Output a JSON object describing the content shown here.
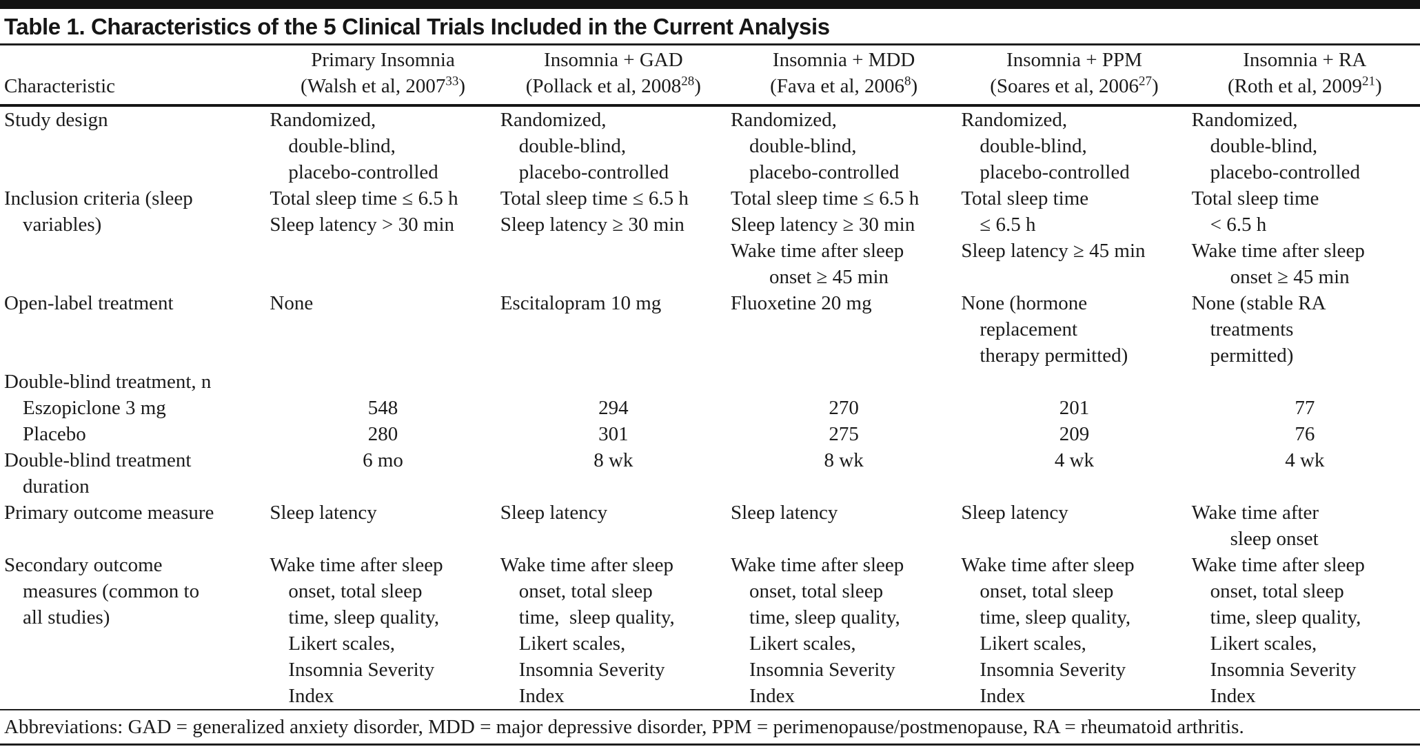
{
  "title": "Table 1. Characteristics of the 5 Clinical Trials Included in the Current Analysis",
  "header": {
    "characteristic": "Characteristic",
    "columns": [
      {
        "name": "Primary Insomnia",
        "ref": "(Walsh et al, 2007",
        "sup": "33",
        "close": ")"
      },
      {
        "name": "Insomnia + GAD",
        "ref": "(Pollack et al, 2008",
        "sup": "28",
        "close": ")"
      },
      {
        "name": "Insomnia + MDD",
        "ref": "(Fava et al, 2006",
        "sup": "8",
        "close": ")"
      },
      {
        "name": "Insomnia + PPM",
        "ref": "(Soares et al, 2006",
        "sup": "27",
        "close": ")"
      },
      {
        "name": "Insomnia + RA",
        "ref": "(Roth et al, 2009",
        "sup": "21",
        "close": ")"
      }
    ]
  },
  "rows": [
    {
      "name": "study-design",
      "label": [
        {
          "t": "Study design",
          "i": 0
        }
      ],
      "cells": [
        {
          "align": "left",
          "lines": [
            {
              "t": "Randomized,",
              "i": 0
            },
            {
              "t": "double-blind,",
              "i": 1
            },
            {
              "t": "placebo-controlled",
              "i": 1
            }
          ]
        },
        {
          "align": "left",
          "lines": [
            {
              "t": "Randomized,",
              "i": 0
            },
            {
              "t": "double-blind,",
              "i": 1
            },
            {
              "t": "placebo-controlled",
              "i": 1
            }
          ]
        },
        {
          "align": "left",
          "lines": [
            {
              "t": "Randomized,",
              "i": 0
            },
            {
              "t": "double-blind,",
              "i": 1
            },
            {
              "t": "placebo-controlled",
              "i": 1
            }
          ]
        },
        {
          "align": "left",
          "lines": [
            {
              "t": "Randomized,",
              "i": 0
            },
            {
              "t": "double-blind,",
              "i": 1
            },
            {
              "t": "placebo-controlled",
              "i": 1
            }
          ]
        },
        {
          "align": "left",
          "lines": [
            {
              "t": "Randomized,",
              "i": 0
            },
            {
              "t": "double-blind,",
              "i": 1
            },
            {
              "t": "placebo-controlled",
              "i": 1
            }
          ]
        }
      ]
    },
    {
      "name": "inclusion-criteria",
      "label": [
        {
          "t": "Inclusion criteria (sleep",
          "i": 0
        },
        {
          "t": "variables)",
          "i": 1
        }
      ],
      "cells": [
        {
          "align": "left",
          "lines": [
            {
              "t": "Total sleep time ≤ 6.5 h",
              "i": 0
            },
            {
              "t": "Sleep latency > 30 min",
              "i": 0
            }
          ]
        },
        {
          "align": "left",
          "lines": [
            {
              "t": "Total sleep time ≤ 6.5 h",
              "i": 0
            },
            {
              "t": "Sleep latency ≥ 30 min",
              "i": 0
            }
          ]
        },
        {
          "align": "left",
          "lines": [
            {
              "t": "Total sleep time ≤ 6.5 h",
              "i": 0
            },
            {
              "t": "Sleep latency ≥ 30 min",
              "i": 0
            },
            {
              "t": "Wake time after sleep",
              "i": 0
            },
            {
              "t": "onset ≥ 45 min",
              "i": 2
            }
          ]
        },
        {
          "align": "left",
          "lines": [
            {
              "t": "Total sleep time",
              "i": 0
            },
            {
              "t": "≤ 6.5 h",
              "i": 1
            },
            {
              "t": "Sleep latency ≥ 45 min",
              "i": 0
            }
          ]
        },
        {
          "align": "left",
          "lines": [
            {
              "t": "Total sleep time",
              "i": 0
            },
            {
              "t": "< 6.5 h",
              "i": 1
            },
            {
              "t": "Wake time after sleep",
              "i": 0
            },
            {
              "t": "onset ≥ 45 min",
              "i": 2
            }
          ]
        }
      ]
    },
    {
      "name": "open-label-treatment",
      "label": [
        {
          "t": "Open-label treatment",
          "i": 0
        }
      ],
      "cells": [
        {
          "align": "left",
          "lines": [
            {
              "t": "None",
              "i": 0
            }
          ]
        },
        {
          "align": "left",
          "lines": [
            {
              "t": "Escitalopram 10 mg",
              "i": 0
            }
          ]
        },
        {
          "align": "left",
          "lines": [
            {
              "t": "Fluoxetine 20 mg",
              "i": 0
            }
          ]
        },
        {
          "align": "left",
          "lines": [
            {
              "t": "None (hormone",
              "i": 0
            },
            {
              "t": "replacement",
              "i": 1
            },
            {
              "t": "therapy permitted)",
              "i": 1
            }
          ]
        },
        {
          "align": "left",
          "lines": [
            {
              "t": "None (stable RA",
              "i": 0
            },
            {
              "t": "treatments",
              "i": 1
            },
            {
              "t": "permitted)",
              "i": 1
            }
          ]
        }
      ]
    },
    {
      "name": "double-blind-treatment-n",
      "label": [
        {
          "t": "Double-blind treatment, n",
          "i": 0
        }
      ],
      "cells": [
        {
          "align": "center",
          "lines": []
        },
        {
          "align": "center",
          "lines": []
        },
        {
          "align": "center",
          "lines": []
        },
        {
          "align": "center",
          "lines": []
        },
        {
          "align": "center",
          "lines": []
        }
      ]
    },
    {
      "name": "eszopiclone-3-mg-n",
      "label": [
        {
          "t": "Eszopiclone 3 mg",
          "i": 1
        }
      ],
      "cells": [
        {
          "align": "center",
          "lines": [
            {
              "t": "548",
              "i": 0
            }
          ]
        },
        {
          "align": "center",
          "lines": [
            {
              "t": "294",
              "i": 0
            }
          ]
        },
        {
          "align": "center",
          "lines": [
            {
              "t": "270",
              "i": 0
            }
          ]
        },
        {
          "align": "center",
          "lines": [
            {
              "t": "201",
              "i": 0
            }
          ]
        },
        {
          "align": "center",
          "lines": [
            {
              "t": "77",
              "i": 0
            }
          ]
        }
      ]
    },
    {
      "name": "placebo-n",
      "label": [
        {
          "t": "Placebo",
          "i": 1
        }
      ],
      "cells": [
        {
          "align": "center",
          "lines": [
            {
              "t": "280",
              "i": 0
            }
          ]
        },
        {
          "align": "center",
          "lines": [
            {
              "t": "301",
              "i": 0
            }
          ]
        },
        {
          "align": "center",
          "lines": [
            {
              "t": "275",
              "i": 0
            }
          ]
        },
        {
          "align": "center",
          "lines": [
            {
              "t": "209",
              "i": 0
            }
          ]
        },
        {
          "align": "center",
          "lines": [
            {
              "t": "76",
              "i": 0
            }
          ]
        }
      ]
    },
    {
      "name": "double-blind-treatment-duration",
      "label": [
        {
          "t": "Double-blind treatment",
          "i": 0
        },
        {
          "t": "duration",
          "i": 1
        }
      ],
      "cells": [
        {
          "align": "center",
          "lines": [
            {
              "t": "6 mo",
              "i": 0
            }
          ]
        },
        {
          "align": "center",
          "lines": [
            {
              "t": "8 wk",
              "i": 0
            }
          ]
        },
        {
          "align": "center",
          "lines": [
            {
              "t": "8 wk",
              "i": 0
            }
          ]
        },
        {
          "align": "center",
          "lines": [
            {
              "t": "4 wk",
              "i": 0
            }
          ]
        },
        {
          "align": "center",
          "lines": [
            {
              "t": "4 wk",
              "i": 0
            }
          ]
        }
      ]
    },
    {
      "name": "primary-outcome-measure",
      "label": [
        {
          "t": "Primary outcome measure",
          "i": 0
        }
      ],
      "cells": [
        {
          "align": "left",
          "lines": [
            {
              "t": "Sleep latency",
              "i": 0
            }
          ]
        },
        {
          "align": "left",
          "lines": [
            {
              "t": "Sleep latency",
              "i": 0
            }
          ]
        },
        {
          "align": "left",
          "lines": [
            {
              "t": "Sleep latency",
              "i": 0
            }
          ]
        },
        {
          "align": "left",
          "lines": [
            {
              "t": "Sleep latency",
              "i": 0
            }
          ]
        },
        {
          "align": "left",
          "lines": [
            {
              "t": "Wake time after",
              "i": 0
            },
            {
              "t": "sleep onset",
              "i": 2
            }
          ]
        }
      ]
    },
    {
      "name": "secondary-outcome-measures",
      "label": [
        {
          "t": "Secondary outcome",
          "i": 0
        },
        {
          "t": "measures (common to",
          "i": 1
        },
        {
          "t": "all studies)",
          "i": 1
        }
      ],
      "cells": [
        {
          "align": "left",
          "lines": [
            {
              "t": "Wake time after sleep",
              "i": 0
            },
            {
              "t": "onset, total sleep",
              "i": 1
            },
            {
              "t": "time, sleep quality,",
              "i": 1
            },
            {
              "t": "Likert scales,",
              "i": 1
            },
            {
              "t": "Insomnia Severity",
              "i": 1
            },
            {
              "t": "Index",
              "i": 1
            }
          ]
        },
        {
          "align": "left",
          "lines": [
            {
              "t": "Wake time after sleep",
              "i": 0
            },
            {
              "t": "onset, total sleep",
              "i": 1
            },
            {
              "t": "time,  sleep quality,",
              "i": 1
            },
            {
              "t": "Likert scales,",
              "i": 1
            },
            {
              "t": "Insomnia Severity",
              "i": 1
            },
            {
              "t": "Index",
              "i": 1
            }
          ]
        },
        {
          "align": "left",
          "lines": [
            {
              "t": "Wake time after sleep",
              "i": 0
            },
            {
              "t": "onset, total sleep",
              "i": 1
            },
            {
              "t": "time, sleep quality,",
              "i": 1
            },
            {
              "t": "Likert scales,",
              "i": 1
            },
            {
              "t": "Insomnia Severity",
              "i": 1
            },
            {
              "t": "Index",
              "i": 1
            }
          ]
        },
        {
          "align": "left",
          "lines": [
            {
              "t": "Wake time after sleep",
              "i": 0
            },
            {
              "t": "onset, total sleep",
              "i": 1
            },
            {
              "t": "time, sleep quality,",
              "i": 1
            },
            {
              "t": "Likert scales,",
              "i": 1
            },
            {
              "t": "Insomnia Severity",
              "i": 1
            },
            {
              "t": "Index",
              "i": 1
            }
          ]
        },
        {
          "align": "left",
          "lines": [
            {
              "t": "Wake time after sleep",
              "i": 0
            },
            {
              "t": "onset, total sleep",
              "i": 1
            },
            {
              "t": "time, sleep quality,",
              "i": 1
            },
            {
              "t": "Likert scales,",
              "i": 1
            },
            {
              "t": "Insomnia Severity",
              "i": 1
            },
            {
              "t": "Index",
              "i": 1
            }
          ]
        }
      ]
    }
  ],
  "footnote": "Abbreviations: GAD = generalized anxiety disorder, MDD = major depressive disorder, PPM = perimenopause/postmenopause, RA = rheumatoid arthritis."
}
